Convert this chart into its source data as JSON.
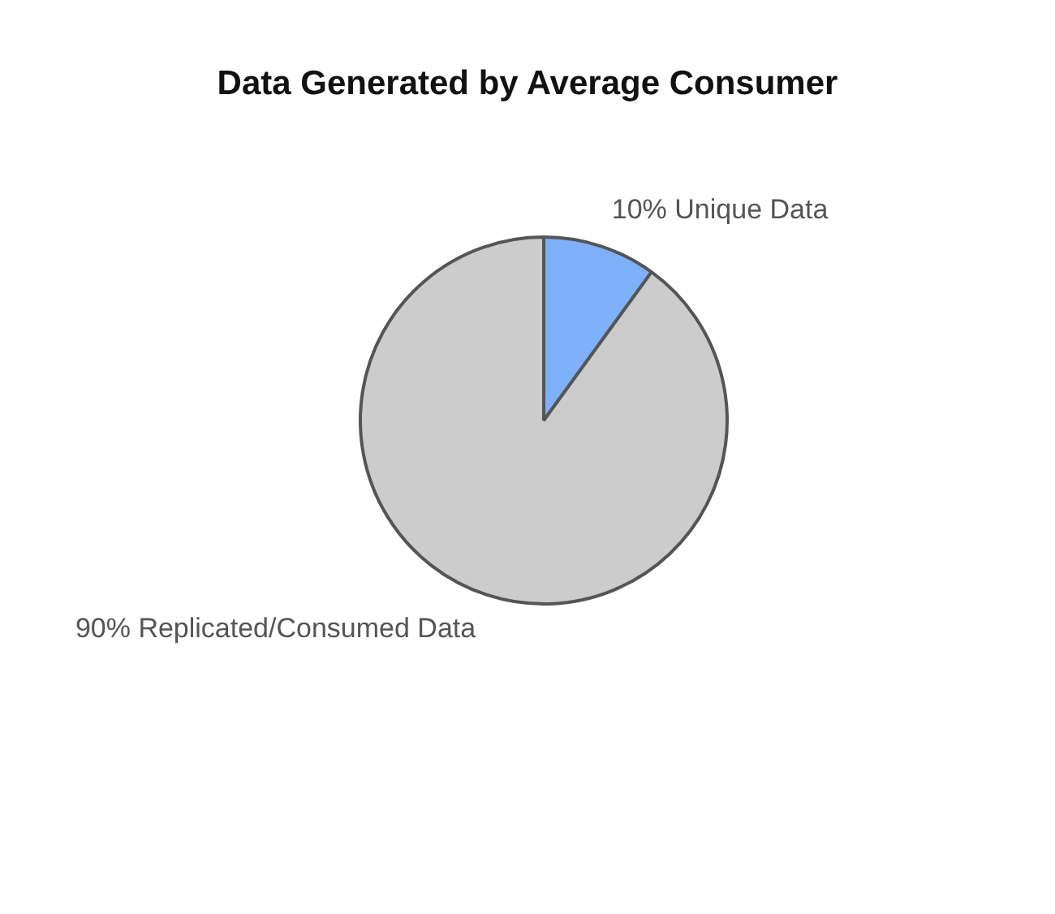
{
  "chart_data": {
    "type": "pie",
    "title": "Data Generated by Average Consumer",
    "categories": [
      "Unique Data",
      "Replicated/Consumed Data"
    ],
    "values": [
      10,
      90
    ],
    "value_labels": [
      "10%",
      "90%"
    ],
    "colors": [
      "#7fb0fa",
      "#cccccc"
    ],
    "legend": false
  }
}
